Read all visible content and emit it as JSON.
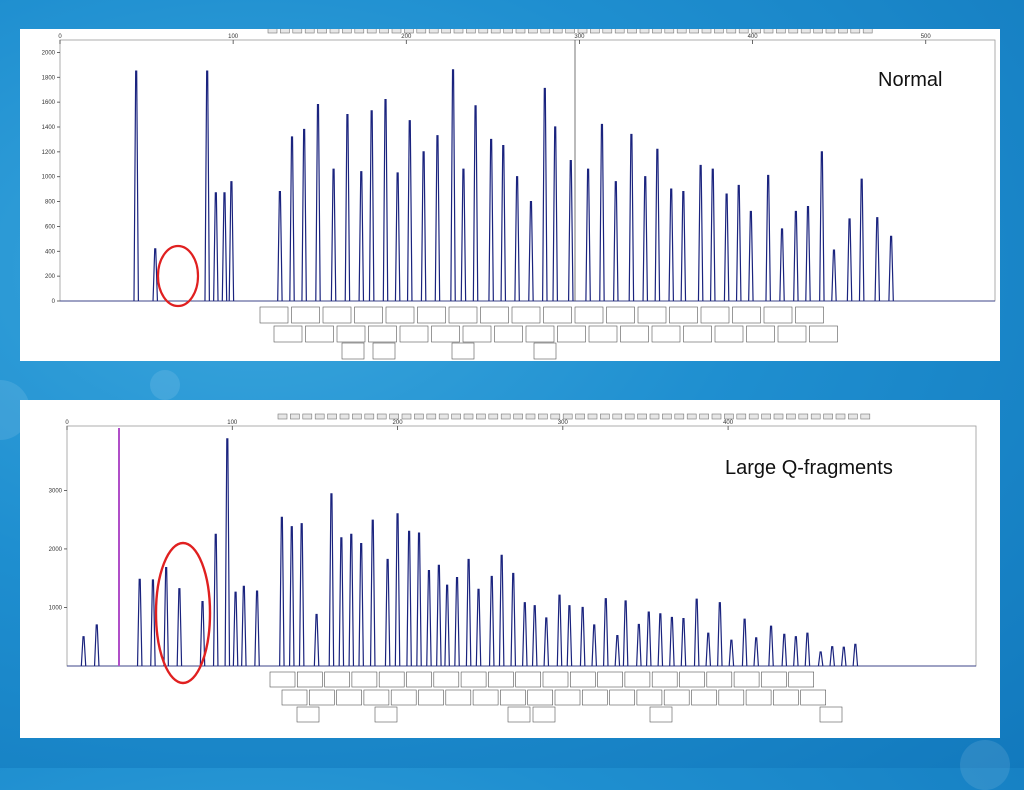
{
  "slide": {
    "background_color": "#1f8fd0"
  },
  "colors": {
    "trace": "#1a237e",
    "highlight": "#e02020",
    "marker": "#b04fc8",
    "axis": "#444444"
  },
  "charts": [
    {
      "title": "Normal",
      "x_ticks": [
        "0",
        "100",
        "200",
        "300",
        "400",
        "500"
      ],
      "y_ticks": [
        "0",
        "200",
        "400",
        "600",
        "800",
        "1000",
        "1200",
        "1400",
        "1600",
        "1800",
        "2000"
      ]
    },
    {
      "title": "Large Q-fragments",
      "x_ticks": [
        "0",
        "100",
        "200",
        "300",
        "400"
      ],
      "y_ticks": [
        "1000",
        "2000",
        "3000"
      ]
    }
  ],
  "chart_data": [
    {
      "type": "line",
      "title": "Normal",
      "xlim": [
        0,
        540
      ],
      "ylim": [
        0,
        2100
      ],
      "peaks": [
        {
          "x": 44,
          "y": 1850
        },
        {
          "x": 55,
          "y": 420
        },
        {
          "x": 85,
          "y": 1850
        },
        {
          "x": 90,
          "y": 870
        },
        {
          "x": 95,
          "y": 870
        },
        {
          "x": 99,
          "y": 960
        },
        {
          "x": 127,
          "y": 880
        },
        {
          "x": 134,
          "y": 1320
        },
        {
          "x": 141,
          "y": 1380
        },
        {
          "x": 149,
          "y": 1580
        },
        {
          "x": 158,
          "y": 1060
        },
        {
          "x": 166,
          "y": 1500
        },
        {
          "x": 174,
          "y": 1040
        },
        {
          "x": 180,
          "y": 1530
        },
        {
          "x": 188,
          "y": 1620
        },
        {
          "x": 195,
          "y": 1030
        },
        {
          "x": 202,
          "y": 1450
        },
        {
          "x": 210,
          "y": 1200
        },
        {
          "x": 218,
          "y": 1330
        },
        {
          "x": 227,
          "y": 1860
        },
        {
          "x": 233,
          "y": 1060
        },
        {
          "x": 240,
          "y": 1570
        },
        {
          "x": 249,
          "y": 1300
        },
        {
          "x": 256,
          "y": 1250
        },
        {
          "x": 264,
          "y": 1000
        },
        {
          "x": 272,
          "y": 800
        },
        {
          "x": 280,
          "y": 1710
        },
        {
          "x": 286,
          "y": 1400
        },
        {
          "x": 295,
          "y": 1130
        },
        {
          "x": 305,
          "y": 1060
        },
        {
          "x": 313,
          "y": 1420
        },
        {
          "x": 321,
          "y": 960
        },
        {
          "x": 330,
          "y": 1340
        },
        {
          "x": 338,
          "y": 1000
        },
        {
          "x": 345,
          "y": 1220
        },
        {
          "x": 353,
          "y": 900
        },
        {
          "x": 360,
          "y": 880
        },
        {
          "x": 370,
          "y": 1090
        },
        {
          "x": 377,
          "y": 1060
        },
        {
          "x": 385,
          "y": 860
        },
        {
          "x": 392,
          "y": 930
        },
        {
          "x": 399,
          "y": 720
        },
        {
          "x": 409,
          "y": 1010
        },
        {
          "x": 417,
          "y": 580
        },
        {
          "x": 425,
          "y": 720
        },
        {
          "x": 432,
          "y": 760
        },
        {
          "x": 440,
          "y": 1200
        },
        {
          "x": 447,
          "y": 410
        },
        {
          "x": 456,
          "y": 660
        },
        {
          "x": 463,
          "y": 980
        },
        {
          "x": 472,
          "y": 670
        },
        {
          "x": 480,
          "y": 520
        }
      ]
    },
    {
      "type": "line",
      "title": "Large Q-fragments",
      "xlim": [
        0,
        550
      ],
      "ylim": [
        0,
        4100
      ],
      "peaks": [
        {
          "x": 10,
          "y": 500
        },
        {
          "x": 18,
          "y": 700
        },
        {
          "x": 44,
          "y": 1480
        },
        {
          "x": 52,
          "y": 1470
        },
        {
          "x": 60,
          "y": 1680
        },
        {
          "x": 68,
          "y": 1320
        },
        {
          "x": 82,
          "y": 1100
        },
        {
          "x": 90,
          "y": 2250
        },
        {
          "x": 97,
          "y": 3880
        },
        {
          "x": 102,
          "y": 1260
        },
        {
          "x": 107,
          "y": 1360
        },
        {
          "x": 115,
          "y": 1280
        },
        {
          "x": 130,
          "y": 2540
        },
        {
          "x": 136,
          "y": 2380
        },
        {
          "x": 142,
          "y": 2430
        },
        {
          "x": 151,
          "y": 880
        },
        {
          "x": 160,
          "y": 2940
        },
        {
          "x": 166,
          "y": 2190
        },
        {
          "x": 172,
          "y": 2250
        },
        {
          "x": 178,
          "y": 2090
        },
        {
          "x": 185,
          "y": 2490
        },
        {
          "x": 194,
          "y": 1820
        },
        {
          "x": 200,
          "y": 2600
        },
        {
          "x": 207,
          "y": 2300
        },
        {
          "x": 213,
          "y": 2270
        },
        {
          "x": 219,
          "y": 1630
        },
        {
          "x": 225,
          "y": 1720
        },
        {
          "x": 230,
          "y": 1380
        },
        {
          "x": 236,
          "y": 1510
        },
        {
          "x": 243,
          "y": 1820
        },
        {
          "x": 249,
          "y": 1310
        },
        {
          "x": 257,
          "y": 1530
        },
        {
          "x": 263,
          "y": 1890
        },
        {
          "x": 270,
          "y": 1580
        },
        {
          "x": 277,
          "y": 1080
        },
        {
          "x": 283,
          "y": 1030
        },
        {
          "x": 290,
          "y": 820
        },
        {
          "x": 298,
          "y": 1210
        },
        {
          "x": 304,
          "y": 1030
        },
        {
          "x": 312,
          "y": 1000
        },
        {
          "x": 319,
          "y": 700
        },
        {
          "x": 326,
          "y": 1150
        },
        {
          "x": 333,
          "y": 520
        },
        {
          "x": 338,
          "y": 1110
        },
        {
          "x": 346,
          "y": 710
        },
        {
          "x": 352,
          "y": 920
        },
        {
          "x": 359,
          "y": 890
        },
        {
          "x": 366,
          "y": 830
        },
        {
          "x": 373,
          "y": 810
        },
        {
          "x": 381,
          "y": 1140
        },
        {
          "x": 388,
          "y": 560
        },
        {
          "x": 395,
          "y": 1080
        },
        {
          "x": 402,
          "y": 440
        },
        {
          "x": 410,
          "y": 800
        },
        {
          "x": 417,
          "y": 480
        },
        {
          "x": 426,
          "y": 680
        },
        {
          "x": 434,
          "y": 540
        },
        {
          "x": 441,
          "y": 500
        },
        {
          "x": 448,
          "y": 560
        },
        {
          "x": 456,
          "y": 240
        },
        {
          "x": 463,
          "y": 330
        },
        {
          "x": 470,
          "y": 320
        },
        {
          "x": 477,
          "y": 370
        }
      ]
    }
  ]
}
